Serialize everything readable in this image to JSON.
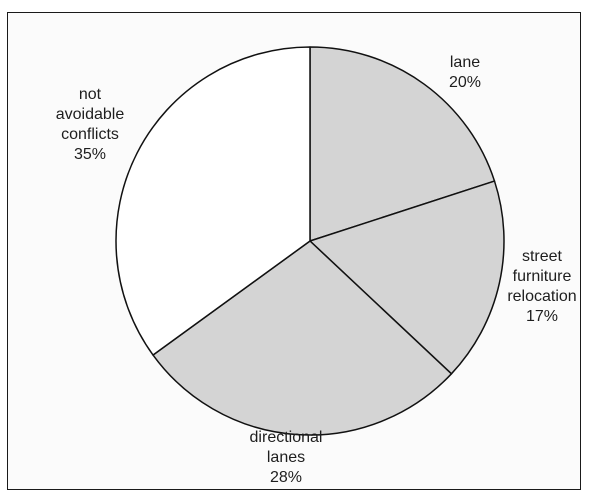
{
  "chart_data": {
    "type": "pie",
    "title": "",
    "slices": [
      {
        "label_lines": [
          "lane"
        ],
        "percent_text": "20%",
        "value": 20,
        "color": "#d4d4d4"
      },
      {
        "label_lines": [
          "street",
          "furniture",
          "relocation"
        ],
        "percent_text": "17%",
        "value": 17,
        "color": "#d4d4d4"
      },
      {
        "label_lines": [
          "directional",
          "lanes"
        ],
        "percent_text": "28%",
        "value": 28,
        "color": "#d4d4d4"
      },
      {
        "label_lines": [
          "not",
          "avoidable",
          "conflicts"
        ],
        "percent_text": "35%",
        "value": 35,
        "color": "#ffffff"
      }
    ]
  }
}
